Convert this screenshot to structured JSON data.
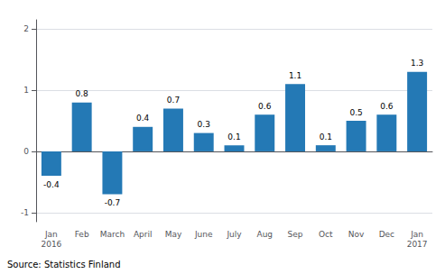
{
  "chart_data": {
    "type": "bar",
    "categories": [
      "Jan\n2016",
      "Feb",
      "March",
      "April",
      "May",
      "June",
      "July",
      "Aug",
      "Sep",
      "Oct",
      "Nov",
      "Dec",
      "Jan\n2017"
    ],
    "values": [
      -0.4,
      0.8,
      -0.7,
      0.4,
      0.7,
      0.3,
      0.1,
      0.6,
      1.1,
      0.1,
      0.5,
      0.6,
      1.3
    ],
    "color": "#2479b5",
    "ylim": [
      -1.15,
      2.15
    ],
    "yticks": [
      -1,
      0,
      1,
      2
    ],
    "grid": true,
    "data_labels": true,
    "source": "Source: Statistics Finland"
  }
}
